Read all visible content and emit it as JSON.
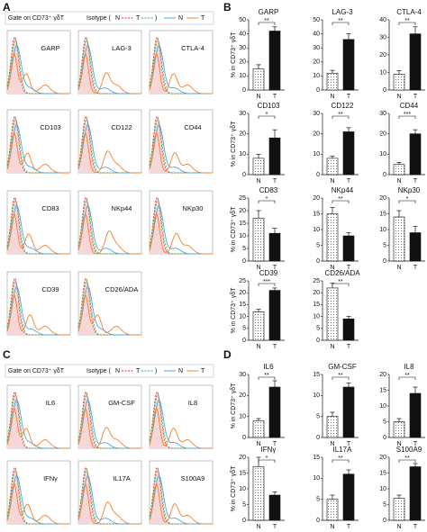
{
  "panel_labels": [
    "A",
    "B",
    "C",
    "D"
  ],
  "flow_a": {
    "gate": "Gate on CD73⁺ γδT",
    "isotype": "Isotype (",
    "iso_n": "N",
    "iso_t": "T",
    "close": ")",
    "n": "N",
    "t": "T",
    "markers": [
      "GARP",
      "LAG-3",
      "CTLA-4",
      "CD103",
      "CD122",
      "CD44",
      "CD83",
      "NKp44",
      "NKp30",
      "CD39",
      "CD26/ADA"
    ]
  },
  "flow_c": {
    "gate": "Gate on CD73⁺ γδT",
    "isotype": "Isotype (",
    "iso_n": "N",
    "iso_t": "T",
    "close": ")",
    "n": "N",
    "t": "T",
    "markers": [
      "IL6",
      "GM-CSF",
      "IL8",
      "IFNγ",
      "IL17A",
      "S100A9"
    ]
  },
  "chart_data": [
    {
      "type": "bar",
      "title": "GARP",
      "ylabel": "% in CD73⁺ γδT",
      "categories": [
        "N",
        "T"
      ],
      "values": [
        15,
        42
      ],
      "errors": [
        3,
        3
      ],
      "colors": [
        "#ffffff",
        "#111111"
      ],
      "ylim": [
        0,
        50
      ],
      "yticks": [
        0,
        10,
        20,
        30,
        40,
        50
      ],
      "significance": "**"
    },
    {
      "type": "bar",
      "title": "LAG-3",
      "categories": [
        "N",
        "T"
      ],
      "values": [
        12,
        36
      ],
      "errors": [
        2,
        4
      ],
      "colors": [
        "#ffffff",
        "#111111"
      ],
      "ylim": [
        0,
        50
      ],
      "yticks": [
        0,
        10,
        20,
        30,
        40,
        50
      ],
      "significance": "**"
    },
    {
      "type": "bar",
      "title": "CTLA-4",
      "categories": [
        "N",
        "T"
      ],
      "values": [
        9,
        32
      ],
      "errors": [
        2,
        4
      ],
      "colors": [
        "#ffffff",
        "#111111"
      ],
      "ylim": [
        0,
        40
      ],
      "yticks": [
        0,
        10,
        20,
        30,
        40
      ],
      "significance": "**"
    },
    {
      "type": "bar",
      "title": "CD103",
      "ylabel": "% in CD73⁺ γδT",
      "categories": [
        "N",
        "T"
      ],
      "values": [
        8,
        18
      ],
      "errors": [
        2,
        4
      ],
      "colors": [
        "#ffffff",
        "#111111"
      ],
      "ylim": [
        0,
        30
      ],
      "yticks": [
        0,
        10,
        20,
        30
      ],
      "significance": "*"
    },
    {
      "type": "bar",
      "title": "CD122",
      "categories": [
        "N",
        "T"
      ],
      "values": [
        8,
        21
      ],
      "errors": [
        1,
        2
      ],
      "colors": [
        "#ffffff",
        "#111111"
      ],
      "ylim": [
        0,
        30
      ],
      "yticks": [
        0,
        10,
        20,
        30
      ],
      "significance": "**"
    },
    {
      "type": "bar",
      "title": "CD44",
      "categories": [
        "N",
        "T"
      ],
      "values": [
        5,
        20
      ],
      "errors": [
        1,
        2
      ],
      "colors": [
        "#ffffff",
        "#111111"
      ],
      "ylim": [
        0,
        30
      ],
      "yticks": [
        0,
        10,
        20,
        30
      ],
      "significance": "***"
    },
    {
      "type": "bar",
      "title": "CD83",
      "ylabel": "% in CD73⁺ γδT",
      "categories": [
        "N",
        "T"
      ],
      "values": [
        17,
        11
      ],
      "errors": [
        3,
        2
      ],
      "colors": [
        "#ffffff",
        "#111111"
      ],
      "ylim": [
        0,
        25
      ],
      "yticks": [
        0,
        5,
        10,
        15,
        20,
        25
      ],
      "significance": "*"
    },
    {
      "type": "bar",
      "title": "NKp44",
      "categories": [
        "N",
        "T"
      ],
      "values": [
        15,
        8
      ],
      "errors": [
        2,
        1
      ],
      "colors": [
        "#ffffff",
        "#111111"
      ],
      "ylim": [
        0,
        20
      ],
      "yticks": [
        0,
        5,
        10,
        15,
        20
      ],
      "significance": "**"
    },
    {
      "type": "bar",
      "title": "NKp30",
      "categories": [
        "N",
        "T"
      ],
      "values": [
        14,
        9
      ],
      "errors": [
        2,
        2
      ],
      "colors": [
        "#ffffff",
        "#111111"
      ],
      "ylim": [
        0,
        20
      ],
      "yticks": [
        0,
        5,
        10,
        15,
        20
      ],
      "significance": "*"
    },
    {
      "type": "bar",
      "title": "CD39",
      "ylabel": "% in CD73⁺ γδT",
      "categories": [
        "N",
        "T"
      ],
      "values": [
        12,
        21
      ],
      "errors": [
        1,
        1
      ],
      "colors": [
        "#ffffff",
        "#111111"
      ],
      "ylim": [
        0,
        25
      ],
      "yticks": [
        0,
        5,
        10,
        15,
        20,
        25
      ],
      "significance": "***"
    },
    {
      "type": "bar",
      "title": "CD26/ADA",
      "categories": [
        "N",
        "T"
      ],
      "values": [
        22,
        9
      ],
      "errors": [
        2,
        1
      ],
      "colors": [
        "#ffffff",
        "#111111"
      ],
      "ylim": [
        0,
        25
      ],
      "yticks": [
        0,
        5,
        10,
        15,
        20,
        25
      ],
      "significance": "**"
    },
    {
      "type": "bar",
      "title": "IL6",
      "ylabel": "% in CD73⁺ γδT",
      "categories": [
        "N",
        "T"
      ],
      "values": [
        8,
        24
      ],
      "errors": [
        1,
        3
      ],
      "colors": [
        "#ffffff",
        "#111111"
      ],
      "ylim": [
        0,
        30
      ],
      "yticks": [
        0,
        10,
        20,
        30
      ],
      "significance": "**"
    },
    {
      "type": "bar",
      "title": "GM-CSF",
      "categories": [
        "N",
        "T"
      ],
      "values": [
        5,
        12
      ],
      "errors": [
        1,
        1
      ],
      "colors": [
        "#ffffff",
        "#111111"
      ],
      "ylim": [
        0,
        15
      ],
      "yticks": [
        0,
        5,
        10,
        15
      ],
      "significance": "**"
    },
    {
      "type": "bar",
      "title": "IL8",
      "categories": [
        "N",
        "T"
      ],
      "values": [
        5,
        14
      ],
      "errors": [
        1,
        2
      ],
      "colors": [
        "#ffffff",
        "#111111"
      ],
      "ylim": [
        0,
        20
      ],
      "yticks": [
        0,
        5,
        10,
        15,
        20
      ],
      "significance": "**"
    },
    {
      "type": "bar",
      "title": "IFNγ",
      "ylabel": "% in CD73⁺ γδT",
      "categories": [
        "N",
        "T"
      ],
      "values": [
        17,
        8
      ],
      "errors": [
        3,
        1
      ],
      "colors": [
        "#ffffff",
        "#111111"
      ],
      "ylim": [
        0,
        20
      ],
      "yticks": [
        0,
        5,
        10,
        15,
        20
      ],
      "significance": "*"
    },
    {
      "type": "bar",
      "title": "IL17A",
      "categories": [
        "N",
        "T"
      ],
      "values": [
        5,
        11
      ],
      "errors": [
        1,
        1
      ],
      "colors": [
        "#ffffff",
        "#111111"
      ],
      "ylim": [
        0,
        15
      ],
      "yticks": [
        0,
        5,
        10,
        15
      ],
      "significance": "**"
    },
    {
      "type": "bar",
      "title": "S100A9",
      "categories": [
        "N",
        "T"
      ],
      "values": [
        7,
        17
      ],
      "errors": [
        1,
        1
      ],
      "colors": [
        "#ffffff",
        "#111111"
      ],
      "ylim": [
        0,
        20
      ],
      "yticks": [
        0,
        5,
        10,
        15,
        20
      ],
      "significance": "**"
    }
  ]
}
